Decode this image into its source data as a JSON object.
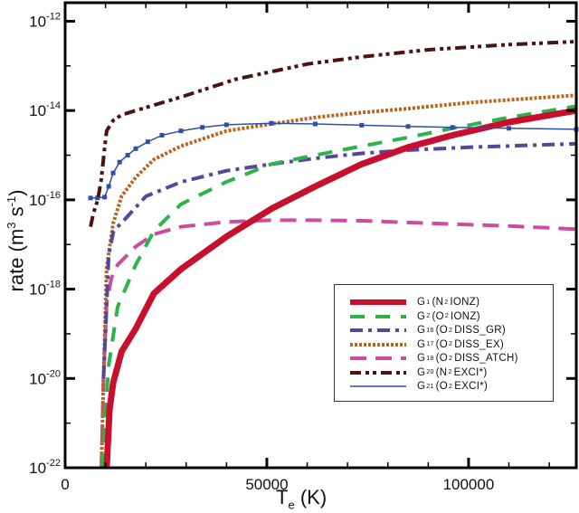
{
  "chart_data": {
    "type": "line",
    "xlabel": {
      "main": "T",
      "sub": "e",
      "unit": "(K)"
    },
    "ylabel": {
      "main": "rate (m",
      "sup1": "3",
      "mid": " s",
      "sup2": "-1",
      "end": ")"
    },
    "xlim": [
      0,
      126700
    ],
    "ylim": [
      1e-22,
      2.6e-12
    ],
    "yscale": "log",
    "grid": false,
    "legend_position": "lower-right",
    "x_ticks": [
      {
        "value": 0,
        "label": "0"
      },
      {
        "value": 50000,
        "label": "50000"
      },
      {
        "value": 100000,
        "label": "100000"
      }
    ],
    "y_ticks": [
      {
        "value": -12,
        "base": "10",
        "exp": "-12"
      },
      {
        "value": -14,
        "base": "10",
        "exp": "-14"
      },
      {
        "value": -16,
        "base": "10",
        "exp": "-16"
      },
      {
        "value": -18,
        "base": "10",
        "exp": "-18"
      },
      {
        "value": -20,
        "base": "10",
        "exp": "-20"
      },
      {
        "value": -22,
        "base": "10",
        "exp": "-22"
      }
    ],
    "series": [
      {
        "sym": "G",
        "sub": "1",
        "species": "N",
        "species_sub": "2",
        "process": "IONZ)",
        "color": "#c8102e",
        "style": "solid-thick",
        "x": [
          10300,
          11000,
          11900,
          14000,
          17500,
          22000,
          28700,
          40000,
          51100,
          62000,
          73500,
          85000,
          96000,
          110000,
          126700
        ],
        "y": [
          1e-22,
          2e-21,
          8e-21,
          4e-20,
          1.3e-19,
          8e-19,
          2.8e-18,
          1.5e-17,
          6.3e-17,
          2e-16,
          6.3e-16,
          1.5e-15,
          2.8e-15,
          5.5e-15,
          1e-14
        ]
      },
      {
        "sym": "G",
        "sub": "2",
        "species": "O",
        "species_sub": "2",
        "process": "IONZ)",
        "color": "#2db34a",
        "style": "dashed",
        "x": [
          9200,
          9800,
          10800,
          13000,
          17500,
          22000,
          28700,
          39900,
          51100,
          62000,
          73500,
          85000,
          96000,
          110000,
          126700
        ],
        "y": [
          1e-22,
          1e-21,
          2e-20,
          4e-19,
          3.5e-18,
          2e-17,
          8e-17,
          2.5e-16,
          6.3e-16,
          1e-15,
          1.6e-15,
          2.5e-15,
          4e-15,
          7e-15,
          1.25e-14
        ]
      },
      {
        "sym": "G",
        "sub": "16",
        "species": "O",
        "species_sub": "2",
        "process": "DISS_GR)",
        "color": "#55489a",
        "style": "dashdot",
        "x": [
          9500,
          10000,
          10800,
          12000,
          15200,
          20000,
          28700,
          40000,
          51100,
          62000,
          73500,
          85000,
          100000,
          126700
        ],
        "y": [
          1e-20,
          1e-19,
          6e-18,
          2e-17,
          4e-17,
          1.2e-16,
          2.5e-16,
          4.5e-16,
          6.3e-16,
          8.5e-16,
          1.1e-15,
          1.3e-15,
          1.5e-15,
          1.8e-15
        ]
      },
      {
        "sym": "G",
        "sub": "17",
        "species": "O",
        "species_sub": "2",
        "process": "DISS_EX)",
        "color": "#b8651f",
        "style": "dotted",
        "x": [
          9000,
          9500,
          10300,
          11900,
          14000,
          17500,
          22000,
          28700,
          40000,
          51100,
          62000,
          73500,
          84800,
          100000,
          126700
        ],
        "y": [
          1e-22,
          1e-20,
          3e-18,
          3e-17,
          1.2e-16,
          3.2e-16,
          8e-16,
          1.6e-15,
          3.5e-15,
          5e-15,
          7e-15,
          9e-15,
          1.1e-14,
          1.5e-14,
          2.2e-14
        ]
      },
      {
        "sym": "G",
        "sub": "18",
        "species": "O",
        "species_sub": "2",
        "process": "DISS_ATCH)",
        "color": "#cc4d9d",
        "style": "dashed-long",
        "x": [
          9000,
          9500,
          10300,
          11500,
          13000,
          17500,
          22000,
          28700,
          40000,
          51100,
          62000,
          73500,
          90000,
          110000,
          126700
        ],
        "y": [
          1e-22,
          1e-20,
          5e-19,
          1.8e-18,
          3.5e-18,
          9e-18,
          1.7e-17,
          2.5e-17,
          3.2e-17,
          3.5e-17,
          3.5e-17,
          3.4e-17,
          3e-17,
          2.6e-17,
          2.2e-17
        ]
      },
      {
        "sym": "G",
        "sub": "20",
        "species": "N",
        "species_sub": "2",
        "process": "EXCI*)",
        "color": "#4a1414",
        "style": "dashdotdot",
        "x": [
          6300,
          7000,
          8100,
          9000,
          9800,
          10300,
          11900,
          14000,
          17500,
          28700,
          42200,
          60000,
          73500,
          90000,
          110000,
          126700
        ],
        "y": [
          2.5e-17,
          5e-17,
          1e-16,
          3e-16,
          1.5e-15,
          3.5e-15,
          6e-15,
          8e-15,
          1e-14,
          2e-14,
          5e-14,
          1.1e-13,
          1.6e-13,
          2.3e-13,
          3e-13,
          3.5e-13
        ]
      },
      {
        "sym": "G",
        "sub": "21",
        "species": "O",
        "species_sub": "2",
        "process": "EXCI*)",
        "color": "#2e4fa8",
        "style": "solid-markers",
        "x": [
          6300,
          8000,
          9800,
          10800,
          11900,
          13500,
          15500,
          17500,
          20500,
          24000,
          28700,
          34000,
          40000,
          51100,
          62000,
          73500,
          85000,
          96000,
          110000,
          126700
        ],
        "y": [
          1.1e-16,
          1.1e-16,
          1.15e-16,
          2e-16,
          4e-16,
          7e-16,
          1e-15,
          1.4e-15,
          2e-15,
          2.8e-15,
          3.5e-15,
          4.2e-15,
          4.8e-15,
          5.2e-15,
          5e-15,
          4.7e-15,
          4.4e-15,
          4.2e-15,
          4e-15,
          3.8e-15
        ]
      }
    ]
  }
}
